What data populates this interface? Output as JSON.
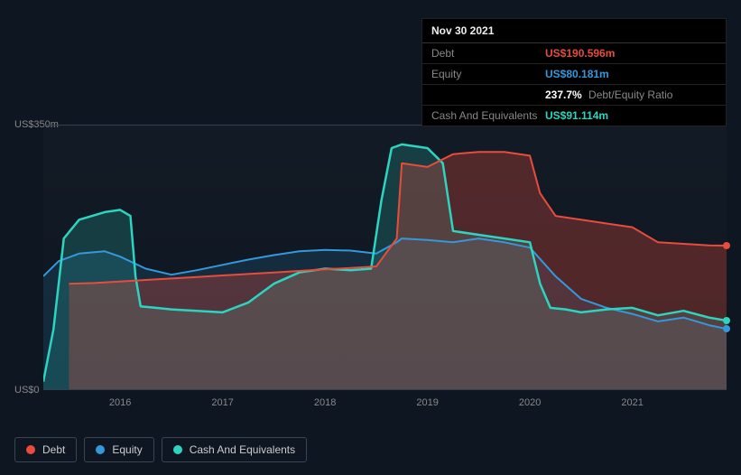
{
  "chart": {
    "type": "area-line",
    "background_color": "#0e1621",
    "grid_color": "#33404f",
    "text_color": "#888888",
    "font_size_axis": 11,
    "font_size_legend": 12,
    "y_axis": {
      "min": 0,
      "max": 350,
      "labels": {
        "top": "US$350m",
        "bottom": "US$0"
      }
    },
    "x_axis": {
      "ticks": [
        "2016",
        "2017",
        "2018",
        "2019",
        "2020",
        "2021"
      ],
      "domain_min": 2015.25,
      "domain_max": 2021.92
    },
    "series": {
      "debt": {
        "label": "Debt",
        "color": "#e74c3c",
        "fill_opacity": 0.3,
        "line_width": 2,
        "data": [
          [
            2015.5,
            140
          ],
          [
            2015.75,
            141
          ],
          [
            2016.0,
            143
          ],
          [
            2016.25,
            145
          ],
          [
            2016.5,
            147
          ],
          [
            2016.75,
            149
          ],
          [
            2017.0,
            151
          ],
          [
            2017.25,
            153
          ],
          [
            2017.5,
            155
          ],
          [
            2017.75,
            157
          ],
          [
            2018.0,
            159
          ],
          [
            2018.25,
            161
          ],
          [
            2018.5,
            163
          ],
          [
            2018.7,
            200
          ],
          [
            2018.75,
            300
          ],
          [
            2019.0,
            295
          ],
          [
            2019.25,
            312
          ],
          [
            2019.5,
            315
          ],
          [
            2019.75,
            315
          ],
          [
            2020.0,
            310
          ],
          [
            2020.1,
            260
          ],
          [
            2020.25,
            230
          ],
          [
            2020.5,
            225
          ],
          [
            2020.75,
            220
          ],
          [
            2021.0,
            215
          ],
          [
            2021.25,
            195
          ],
          [
            2021.5,
            193
          ],
          [
            2021.75,
            191
          ],
          [
            2021.92,
            190.6
          ]
        ]
      },
      "equity": {
        "label": "Equity",
        "color": "#3498db",
        "fill_opacity": 0.15,
        "line_width": 2,
        "data": [
          [
            2015.25,
            150
          ],
          [
            2015.4,
            170
          ],
          [
            2015.6,
            180
          ],
          [
            2015.85,
            183
          ],
          [
            2016.0,
            176
          ],
          [
            2016.25,
            160
          ],
          [
            2016.5,
            152
          ],
          [
            2016.75,
            158
          ],
          [
            2017.0,
            165
          ],
          [
            2017.25,
            172
          ],
          [
            2017.5,
            178
          ],
          [
            2017.75,
            183
          ],
          [
            2018.0,
            185
          ],
          [
            2018.25,
            184
          ],
          [
            2018.5,
            180
          ],
          [
            2018.7,
            195
          ],
          [
            2018.75,
            200
          ],
          [
            2019.0,
            198
          ],
          [
            2019.25,
            195
          ],
          [
            2019.5,
            200
          ],
          [
            2019.75,
            195
          ],
          [
            2020.0,
            188
          ],
          [
            2020.25,
            150
          ],
          [
            2020.5,
            120
          ],
          [
            2020.75,
            108
          ],
          [
            2021.0,
            100
          ],
          [
            2021.25,
            90
          ],
          [
            2021.5,
            95
          ],
          [
            2021.75,
            85
          ],
          [
            2021.92,
            80.2
          ]
        ]
      },
      "cash": {
        "label": "Cash And Equivalents",
        "color": "#2dd4bf",
        "fill_opacity": 0.2,
        "line_width": 2.5,
        "data": [
          [
            2015.25,
            10
          ],
          [
            2015.35,
            80
          ],
          [
            2015.45,
            200
          ],
          [
            2015.6,
            225
          ],
          [
            2015.85,
            235
          ],
          [
            2016.0,
            238
          ],
          [
            2016.1,
            230
          ],
          [
            2016.15,
            150
          ],
          [
            2016.2,
            110
          ],
          [
            2016.35,
            108
          ],
          [
            2016.5,
            106
          ],
          [
            2016.75,
            104
          ],
          [
            2017.0,
            102
          ],
          [
            2017.25,
            115
          ],
          [
            2017.5,
            140
          ],
          [
            2017.75,
            155
          ],
          [
            2018.0,
            160
          ],
          [
            2018.25,
            158
          ],
          [
            2018.45,
            160
          ],
          [
            2018.55,
            250
          ],
          [
            2018.65,
            320
          ],
          [
            2018.75,
            325
          ],
          [
            2019.0,
            320
          ],
          [
            2019.15,
            300
          ],
          [
            2019.25,
            210
          ],
          [
            2019.5,
            205
          ],
          [
            2019.75,
            200
          ],
          [
            2020.0,
            195
          ],
          [
            2020.1,
            140
          ],
          [
            2020.2,
            108
          ],
          [
            2020.35,
            106
          ],
          [
            2020.5,
            102
          ],
          [
            2020.75,
            106
          ],
          [
            2021.0,
            108
          ],
          [
            2021.25,
            98
          ],
          [
            2021.5,
            104
          ],
          [
            2021.75,
            95
          ],
          [
            2021.92,
            91.1
          ]
        ]
      }
    }
  },
  "tooltip": {
    "date": "Nov 30 2021",
    "rows": {
      "debt": {
        "label": "Debt",
        "value": "US$190.596m",
        "class": "debt"
      },
      "equity": {
        "label": "Equity",
        "value": "US$80.181m",
        "class": "equity"
      },
      "ratio": {
        "label": "",
        "value": "237.7%",
        "suffix": "Debt/Equity Ratio",
        "class": "ratio"
      },
      "cash": {
        "label": "Cash And Equivalents",
        "value": "US$91.114m",
        "class": "cash"
      }
    }
  },
  "legend": {
    "items": [
      {
        "key": "debt",
        "label": "Debt",
        "color": "#e74c3c"
      },
      {
        "key": "equity",
        "label": "Equity",
        "color": "#3498db"
      },
      {
        "key": "cash",
        "label": "Cash And Equivalents",
        "color": "#2dd4bf"
      }
    ],
    "border_color": "#3a4552"
  }
}
